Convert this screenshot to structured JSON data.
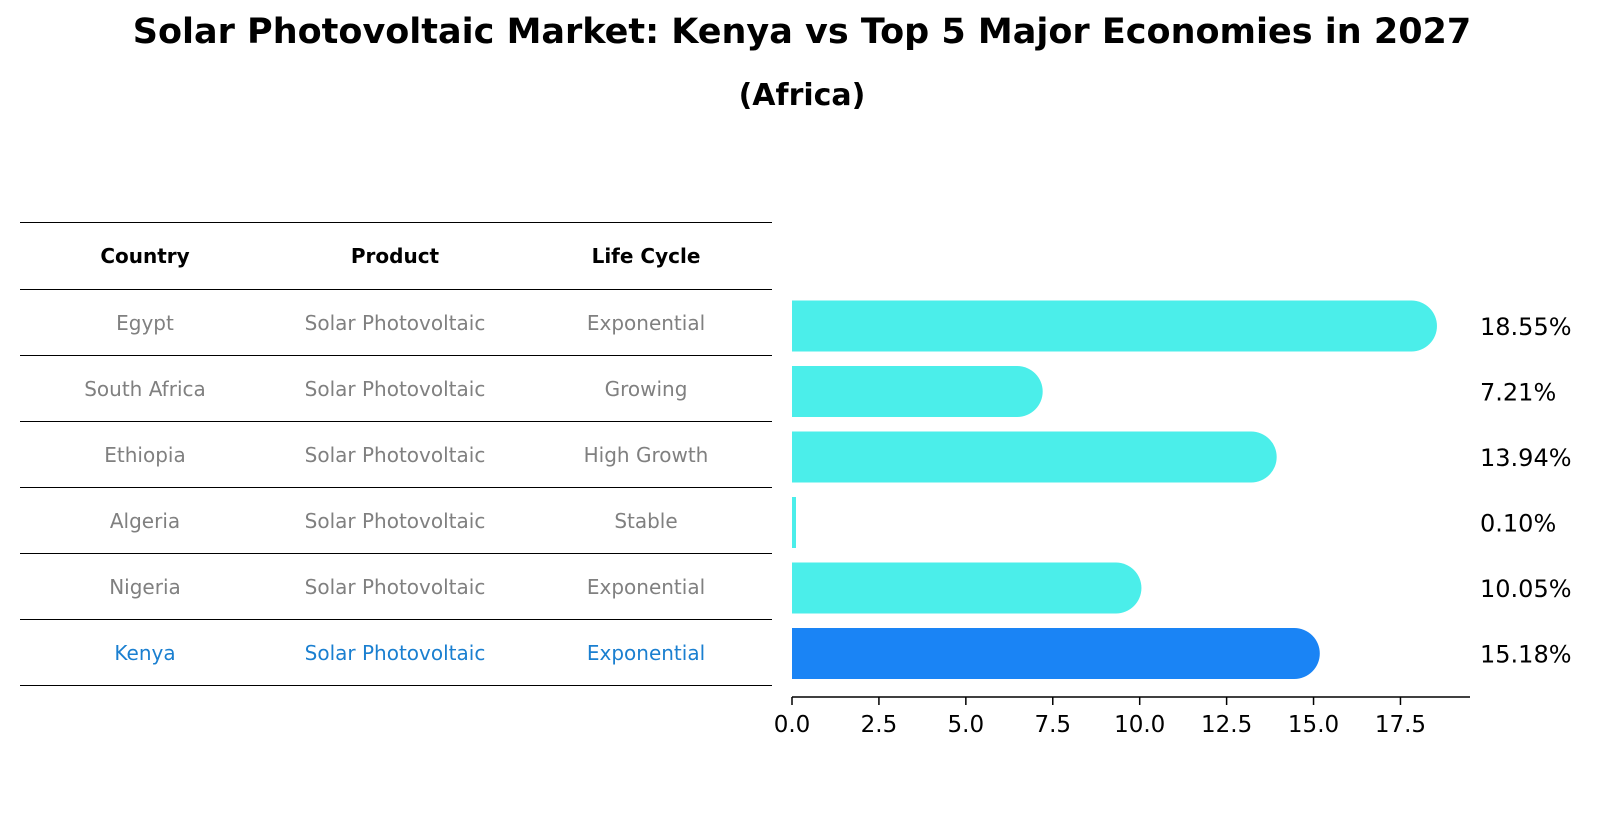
{
  "title": "Solar Photovoltaic Market: Kenya vs Top 5 Major Economies in 2027",
  "subtitle": "(Africa)",
  "table": {
    "headers": [
      "Country",
      "Product",
      "Life Cycle"
    ],
    "rows": [
      {
        "country": "Egypt",
        "product": "Solar Photovoltaic",
        "life_cycle": "Exponential"
      },
      {
        "country": "South Africa",
        "product": "Solar Photovoltaic",
        "life_cycle": "Growing"
      },
      {
        "country": "Ethiopia",
        "product": "Solar Photovoltaic",
        "life_cycle": "High Growth"
      },
      {
        "country": "Algeria",
        "product": "Solar Photovoltaic",
        "life_cycle": "Stable"
      },
      {
        "country": "Nigeria",
        "product": "Solar Photovoltaic",
        "life_cycle": "Exponential"
      },
      {
        "country": "Kenya",
        "product": "Solar Photovoltaic",
        "life_cycle": "Exponential"
      }
    ]
  },
  "colors": {
    "bar_default": "#4beeea",
    "bar_highlight": "#1a84f5",
    "text_muted": "#808080",
    "text_highlight": "#1a7fd0"
  },
  "chart_data": {
    "type": "bar",
    "orientation": "horizontal",
    "categories": [
      "Egypt",
      "South Africa",
      "Ethiopia",
      "Algeria",
      "Nigeria",
      "Kenya"
    ],
    "values": [
      18.55,
      7.21,
      13.94,
      0.1,
      10.05,
      15.18
    ],
    "value_labels": [
      "18.55%",
      "7.21%",
      "13.94%",
      "0.10%",
      "10.05%",
      "15.18%"
    ],
    "highlight": "Kenya",
    "xlim": [
      0,
      19.5
    ],
    "xticks": [
      0.0,
      2.5,
      5.0,
      7.5,
      10.0,
      12.5,
      15.0,
      17.5
    ],
    "xtick_labels": [
      "0.0",
      "2.5",
      "5.0",
      "7.5",
      "10.0",
      "12.5",
      "15.0",
      "17.5"
    ],
    "grid": false,
    "title": "Solar Photovoltaic Market: Kenya vs Top 5 Major Economies in 2027",
    "xlabel": "",
    "ylabel": ""
  }
}
